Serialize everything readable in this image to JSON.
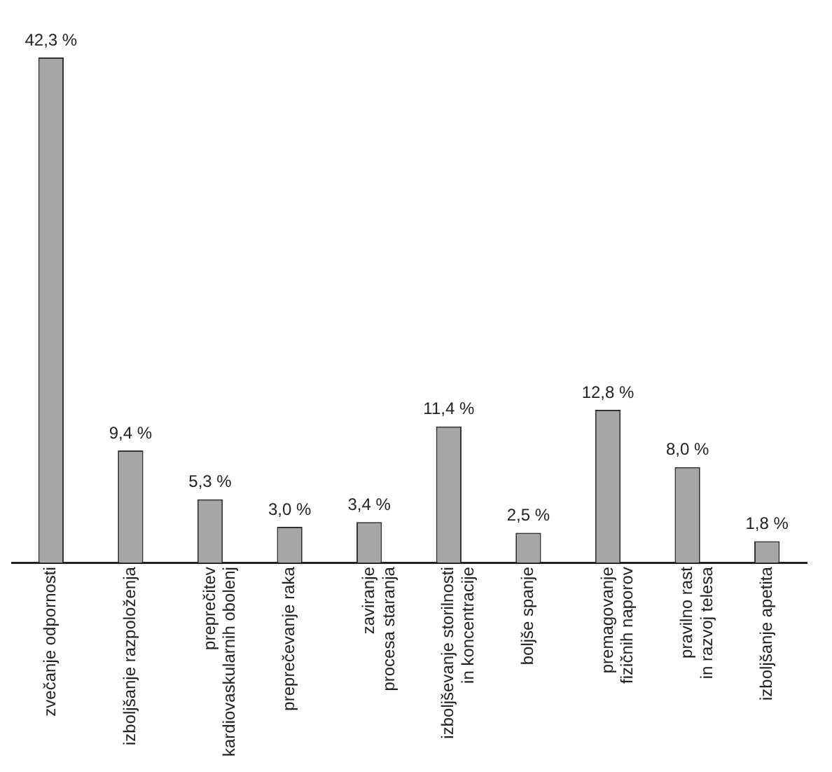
{
  "chart_data": {
    "type": "bar",
    "categories": [
      "zvečanje odpornosti",
      "izboljšanje razpoloženja",
      "preprečitev\nkardiovaskularnih obolenj",
      "preprečevanje raka",
      "zaviranje\nprocesa staranja",
      "izboljševanje storilnosti\nin koncentracije",
      "boljše spanje",
      "premagovanje\nfizičnih naporov",
      "pravilno rast\nin razvoj telesa",
      "izboljšanje apetita"
    ],
    "values": [
      42.3,
      9.4,
      5.3,
      3.0,
      3.4,
      11.4,
      2.5,
      12.8,
      8.0,
      1.8
    ],
    "value_labels": [
      "42,3 %",
      "9,4 %",
      "5,3 %",
      "3,0 %",
      "3,4 %",
      "11,4 %",
      "2,5 %",
      "12,8 %",
      "8,0 %",
      "1,8 %"
    ],
    "color": "#a6a6a6",
    "grid": false,
    "legend": false
  }
}
